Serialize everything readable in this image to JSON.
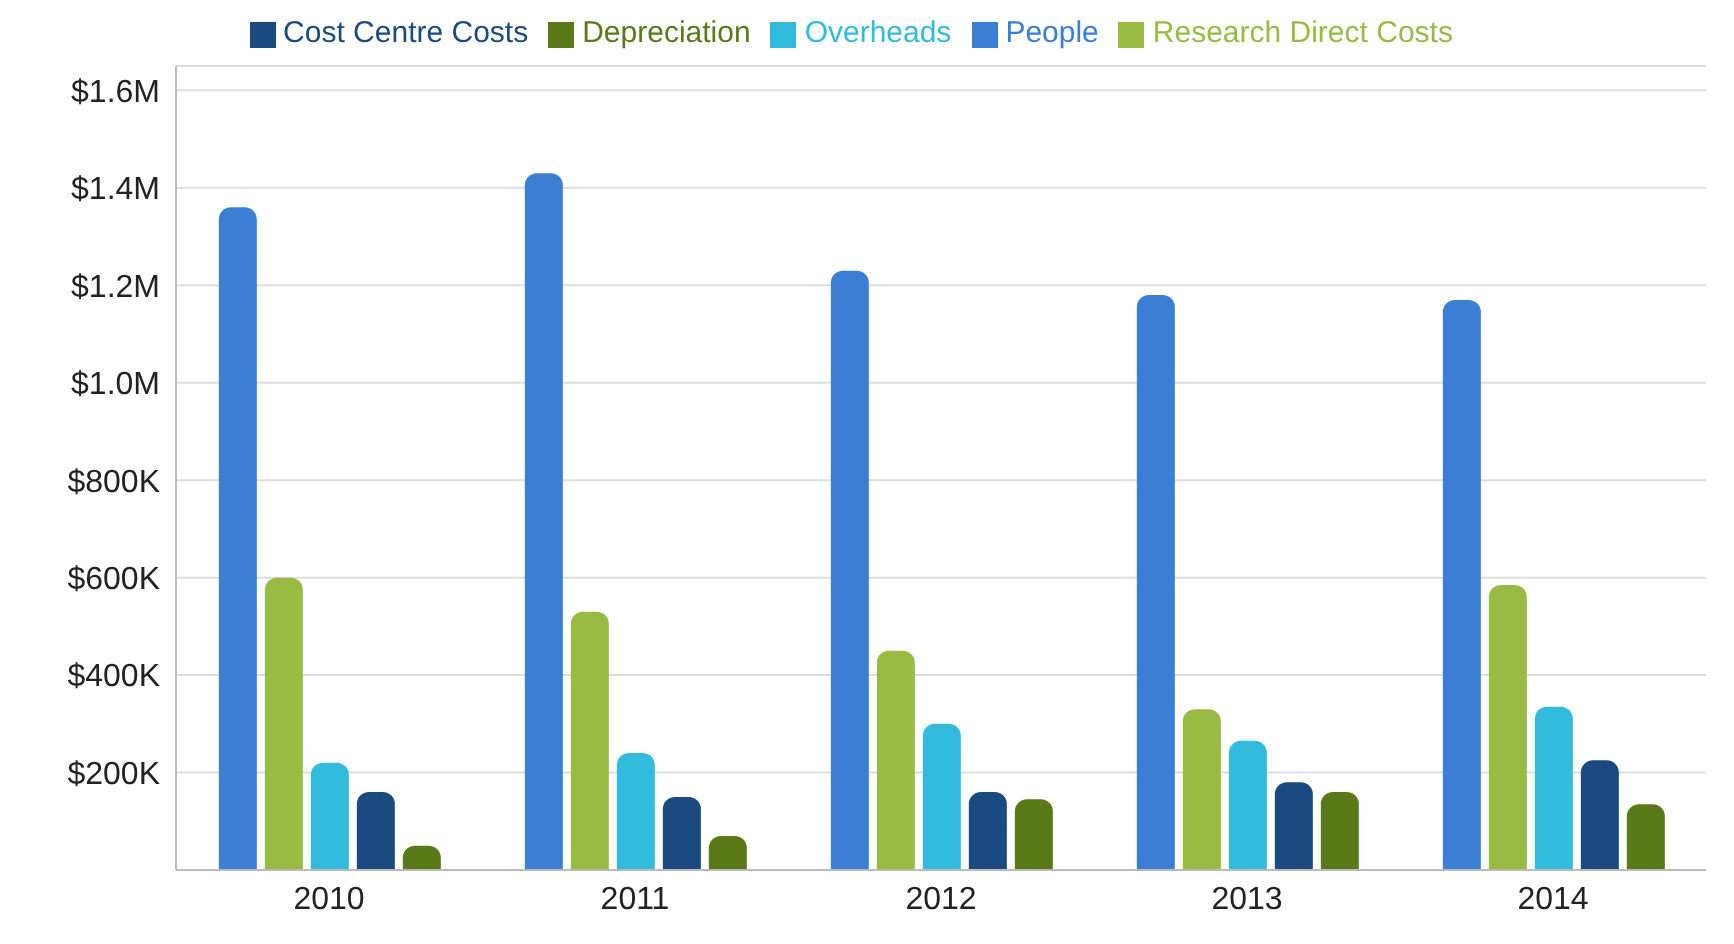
{
  "chart_data": {
    "type": "bar",
    "categories": [
      "2010",
      "2011",
      "2012",
      "2013",
      "2014"
    ],
    "series": [
      {
        "name": "People",
        "color": "#3a7fd5",
        "values": [
          1360000,
          1430000,
          1230000,
          1180000,
          1170000
        ]
      },
      {
        "name": "Research Direct Costs",
        "color": "#99bb44",
        "values": [
          600000,
          530000,
          450000,
          330000,
          585000
        ]
      },
      {
        "name": "Overheads",
        "color": "#33bbdd",
        "values": [
          220000,
          240000,
          300000,
          265000,
          335000
        ]
      },
      {
        "name": "Cost Centre Costs",
        "color": "#1a4a80",
        "values": [
          160000,
          150000,
          160000,
          180000,
          225000
        ]
      },
      {
        "name": "Depreciation",
        "color": "#5a7a1a",
        "values": [
          50000,
          70000,
          145000,
          160000,
          135000
        ]
      }
    ],
    "ylim": [
      0,
      1650000
    ],
    "yticks": [
      {
        "value": 200000,
        "label": "$200K"
      },
      {
        "value": 400000,
        "label": "$400K"
      },
      {
        "value": 600000,
        "label": "$600K"
      },
      {
        "value": 800000,
        "label": "$800K"
      },
      {
        "value": 1000000,
        "label": "$1.0M"
      },
      {
        "value": 1200000,
        "label": "$1.2M"
      },
      {
        "value": 1400000,
        "label": "$1.4M"
      },
      {
        "value": 1600000,
        "label": "$1.6M"
      }
    ],
    "grid": "y",
    "legend": "top"
  }
}
